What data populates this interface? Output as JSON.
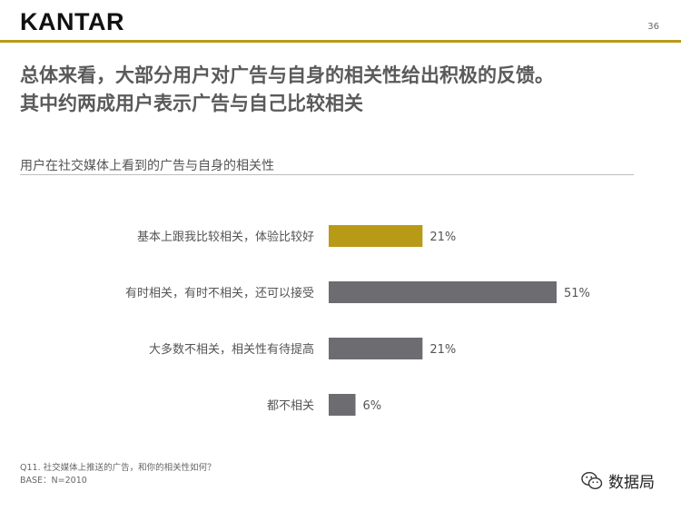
{
  "brand": {
    "logo": "KANTAR",
    "accent_color": "#b99a17"
  },
  "page_number": "36",
  "headline": {
    "line1": "总体来看，大部分用户对广告与自身的相关性给出积极的反馈。",
    "line2": "其中约两成用户表示广告与自己比较相关"
  },
  "subtitle": "用户在社交媒体上看到的广告与自身的相关性",
  "chart_data": {
    "type": "bar",
    "orientation": "horizontal",
    "categories": [
      "基本上跟我比较相关，体验比较好",
      "有时相关，有时不相关，还可以接受",
      "大多数不相关，相关性有待提高",
      "都不相关"
    ],
    "values": [
      21,
      51,
      21,
      6
    ],
    "value_labels": [
      "21%",
      "51%",
      "21%",
      "6%"
    ],
    "colors": [
      "#b99a17",
      "#6d6c71",
      "#6d6c71",
      "#6d6c71"
    ],
    "xlim": [
      0,
      51
    ],
    "grid": false,
    "legend": "none"
  },
  "footnote": {
    "question": "Q11. 社交媒体上推送的广告，和你的相关性如何？",
    "base": "BASE：N=2010"
  },
  "watermark": {
    "icon": "wechat-icon",
    "text": "数据局"
  }
}
